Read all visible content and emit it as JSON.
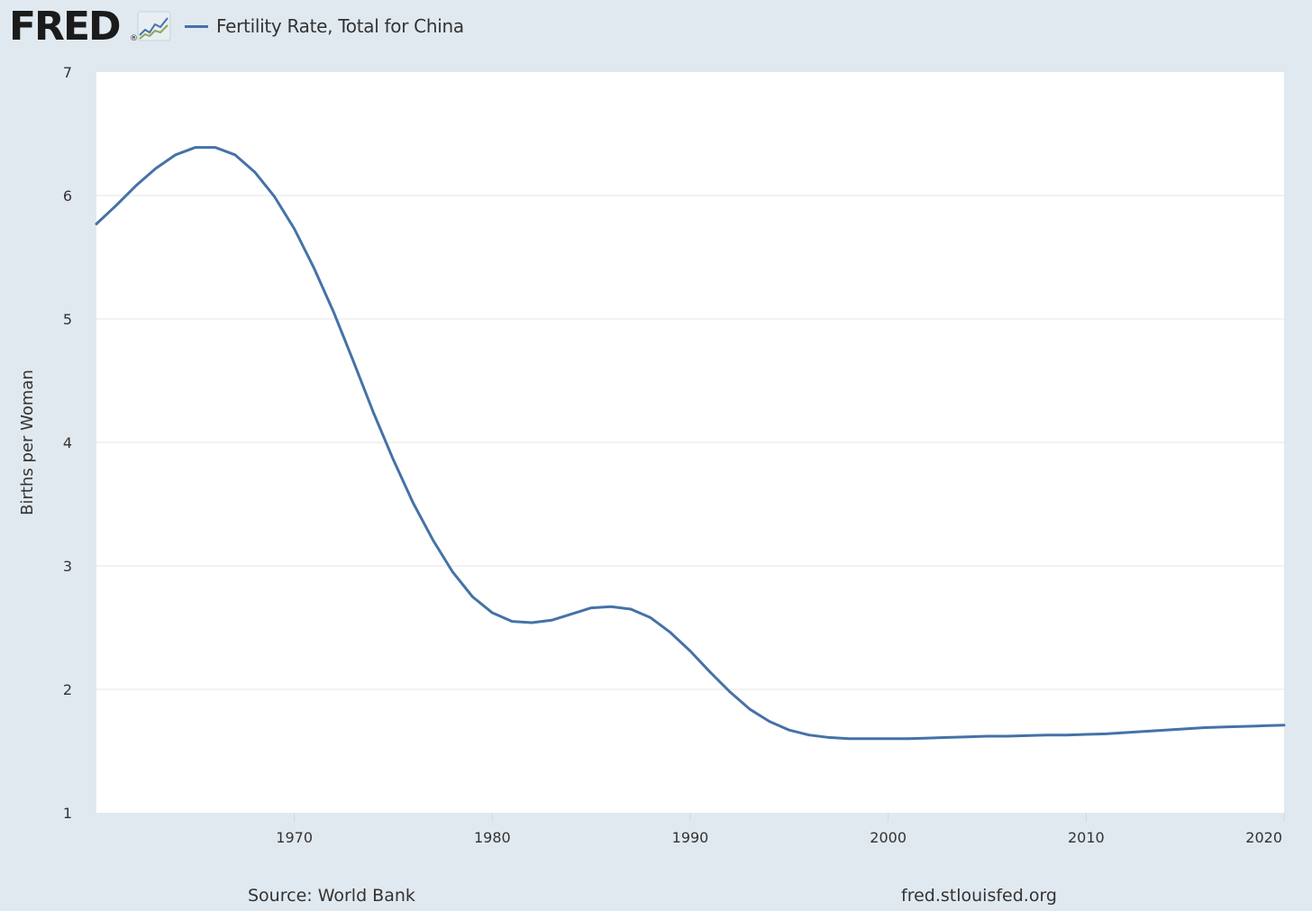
{
  "header": {
    "logo_text": "FRED",
    "logo_reg": "®",
    "logo_icon": "line-chart-icon",
    "legend_label": "Fertility Rate, Total for China"
  },
  "footer": {
    "source": "Source: World Bank",
    "url": "fred.stlouisfed.org"
  },
  "colors": {
    "background": "#e1e9f0",
    "plot_background": "#ffffff",
    "series": "#4572a7",
    "gridline": "#e6e6e6",
    "text": "#333333"
  },
  "chart_data": {
    "type": "line",
    "title": "",
    "xlabel": "",
    "ylabel": "Births per Woman",
    "xlim": [
      1960,
      2020
    ],
    "ylim": [
      1,
      7
    ],
    "xticks": [
      "1970",
      "1980",
      "1990",
      "2000",
      "2010",
      "2020"
    ],
    "yticks": [
      "1",
      "2",
      "3",
      "4",
      "5",
      "6",
      "7"
    ],
    "grid": "horizontal",
    "legend": "top-left",
    "series": [
      {
        "name": "Fertility Rate, Total for China",
        "x": [
          1960,
          1961,
          1962,
          1963,
          1964,
          1965,
          1966,
          1967,
          1968,
          1969,
          1970,
          1971,
          1972,
          1973,
          1974,
          1975,
          1976,
          1977,
          1978,
          1979,
          1980,
          1981,
          1982,
          1983,
          1984,
          1985,
          1986,
          1987,
          1988,
          1989,
          1990,
          1991,
          1992,
          1993,
          1994,
          1995,
          1996,
          1997,
          1998,
          1999,
          2000,
          2001,
          2002,
          2003,
          2004,
          2005,
          2006,
          2007,
          2008,
          2009,
          2010,
          2011,
          2012,
          2013,
          2014,
          2015,
          2016,
          2017,
          2018,
          2019,
          2020
        ],
        "values": [
          5.77,
          5.92,
          6.08,
          6.22,
          6.33,
          6.39,
          6.39,
          6.33,
          6.19,
          5.99,
          5.73,
          5.41,
          5.05,
          4.65,
          4.24,
          3.86,
          3.51,
          3.21,
          2.95,
          2.75,
          2.62,
          2.55,
          2.54,
          2.56,
          2.61,
          2.66,
          2.67,
          2.65,
          2.58,
          2.46,
          2.31,
          2.14,
          1.98,
          1.84,
          1.74,
          1.67,
          1.63,
          1.61,
          1.6,
          1.6,
          1.6,
          1.6,
          1.605,
          1.61,
          1.615,
          1.62,
          1.62,
          1.625,
          1.63,
          1.63,
          1.635,
          1.64,
          1.65,
          1.66,
          1.67,
          1.68,
          1.69,
          1.695,
          1.7,
          1.705,
          1.71
        ]
      }
    ]
  }
}
